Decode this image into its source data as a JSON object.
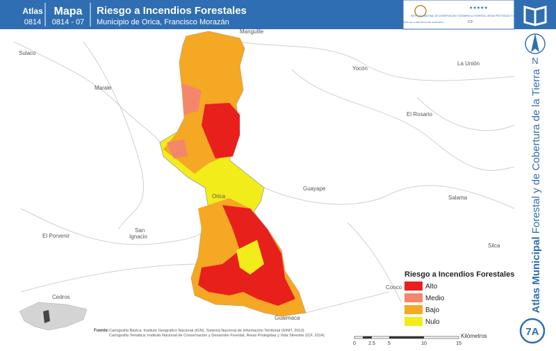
{
  "header": {
    "atlas_label": "Atlas",
    "atlas_code": "0814",
    "map_label": "Mapa",
    "map_code": "0814 - 07",
    "title": "Riesgo a Incendios Forestales",
    "subtitle": "Municipio de Orica, Francisco Morazán",
    "logo_left": "GOBIERNO DE LA REPÚBLICA DE HONDURAS",
    "logo_right": "INSTITUTO NACIONAL DE CONSERVACIÓN Y DESARROLLO FORESTAL, ÁREAS PROTEGIDAS Y VIDA SILVESTRE",
    "logo_acronym": "ICF"
  },
  "side": {
    "north": "N",
    "title_bold": "Atlas Municipal",
    "title_rest": "Forestal y de Cobertura de la Tierra",
    "page": "7A"
  },
  "places": [
    "Mangulile",
    "Sulaco",
    "Yocón",
    "La Unión",
    "Marale",
    "El Rosario",
    "Orica",
    "Guayape",
    "Salama",
    "San",
    "Ignacio",
    "El Porvenir",
    "Silca",
    "Concor",
    "Guaimaca",
    "Cedros"
  ],
  "legend": {
    "title": "Riesgo a Incendios Forestales",
    "items": [
      {
        "label": "Alto",
        "color": "#e8201c"
      },
      {
        "label": "Medio",
        "color": "#f4866c"
      },
      {
        "label": "Bajo",
        "color": "#f4a823"
      },
      {
        "label": "Nulo",
        "color": "#f3ec1b"
      }
    ]
  },
  "sources": {
    "label": "Fuente:",
    "line1": "Cartografía Básica: Instituto Geográfico Nacional (IGN), Sistema Nacional de Información Territorial (SINIT, 2013)",
    "line2": "Cartografía Temática: Instituto Nacional de Conservación y Desarrollo Forestal, Áreas Protegidas y Vida Silvestre (ICF, 2014)"
  },
  "scale": {
    "unit": "Kilómetros",
    "ticks": [
      "0",
      "2.5",
      "5",
      "10",
      "15"
    ]
  }
}
